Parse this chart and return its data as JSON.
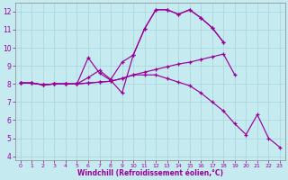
{
  "xlabel": "Windchill (Refroidissement éolien,°C)",
  "xlim": [
    -0.5,
    23.5
  ],
  "ylim": [
    3.8,
    12.5
  ],
  "yticks": [
    4,
    5,
    6,
    7,
    8,
    9,
    10,
    11,
    12
  ],
  "xticks": [
    0,
    1,
    2,
    3,
    4,
    5,
    6,
    7,
    8,
    9,
    10,
    11,
    12,
    13,
    14,
    15,
    16,
    17,
    18,
    19,
    20,
    21,
    22,
    23
  ],
  "bg_color": "#c5eaf0",
  "line_color": "#990099",
  "grid_color": "#a8d4dc",
  "line1_x": [
    0,
    1,
    2,
    3,
    4,
    5,
    6,
    7,
    8,
    9,
    10,
    11,
    12,
    13,
    14,
    15,
    16,
    17,
    18
  ],
  "line1_y": [
    8.05,
    8.05,
    7.95,
    8.0,
    8.0,
    8.0,
    9.45,
    8.6,
    8.2,
    7.5,
    9.6,
    11.05,
    12.1,
    12.1,
    11.85,
    12.1,
    11.65,
    11.1,
    10.3
  ],
  "line2_x": [
    0,
    1,
    2,
    3,
    4,
    5,
    6,
    7,
    8,
    9,
    10,
    11,
    12,
    13,
    14,
    15,
    16,
    17,
    18
  ],
  "line2_y": [
    8.05,
    8.05,
    7.95,
    8.0,
    8.0,
    8.0,
    8.35,
    8.75,
    8.25,
    9.2,
    9.6,
    11.05,
    12.1,
    12.1,
    11.85,
    12.1,
    11.65,
    11.1,
    10.3
  ],
  "line3_x": [
    0,
    1,
    2,
    3,
    4,
    5,
    6,
    7,
    8,
    9,
    10,
    11,
    12,
    13,
    14,
    15,
    16,
    17,
    18,
    19
  ],
  "line3_y": [
    8.05,
    8.05,
    7.95,
    8.0,
    8.0,
    8.0,
    8.05,
    8.1,
    8.15,
    8.3,
    8.5,
    8.65,
    8.8,
    8.95,
    9.1,
    9.2,
    9.35,
    9.5,
    9.65,
    8.5
  ],
  "line4_x": [
    0,
    1,
    2,
    3,
    4,
    5,
    6,
    7,
    8,
    9,
    10,
    11,
    12,
    13,
    14,
    15,
    16,
    17,
    18,
    19,
    20,
    21,
    22,
    23
  ],
  "line4_y": [
    8.05,
    8.05,
    7.95,
    8.0,
    8.0,
    8.0,
    8.05,
    8.1,
    8.15,
    8.3,
    8.5,
    8.5,
    8.5,
    8.3,
    8.1,
    7.9,
    7.5,
    7.0,
    6.5,
    5.8,
    5.2,
    6.3,
    5.0,
    4.5
  ]
}
